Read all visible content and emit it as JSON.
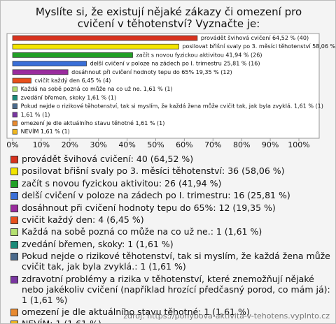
{
  "chart_data": {
    "type": "hbar",
    "title": "Myslíte si, že existují nějaké zákazy či omezení pro cvičení v těhotenství? Vyznačte je:",
    "categories": [
      "provádět švihová cvičení: 40 (64,52 %)",
      "posilovat břišní svaly po 3. měsíci těhotenství: 36 (58,06 %)",
      "začít s novou fyzickou aktivitou: 26 (41,94 %)",
      "delší cvičení v poloze na zádech po I. trimestru: 16 (25,81 %)",
      "dosáhnout při cvičení hodnoty tepu do 65%: 12 (19,35 %)",
      "cvičit každý den: 4 (6,45 %)",
      "Každá na sobě pozná co může na co už ne.: 1 (1,61 %)",
      "zvedání břemen, skoky: 1 (1,61 %)",
      "Pokud nejde o rizikové těhotenství, tak si myslím, že každá žena může cvičit tak, jak byla zvyklá.: 1 (1,61 %)",
      "zdravotní problémy a rizika v těhotenství, které znemožňují nějaké nebo jakékoliv cvičení (například hrozící předčasný porod, co mám já): 1 (1,61 %)",
      "omezení je dle aktuálního stavu  těhotné: 1 (1,61 %)",
      "NEVÍM: 1 (1,61 %)"
    ],
    "values": [
      64.52,
      58.06,
      41.94,
      25.81,
      19.35,
      6.45,
      1.61,
      1.61,
      1.61,
      1.61,
      1.61,
      1.61
    ],
    "value_labels": [
      "provádět švihová cvičení 64,52 % (40)",
      "posilovat břišní svaly po 3. měsíci těhotenství 58,06 % (36)",
      "začít s novou fyzickou aktivitou 41,94 % (26)",
      "delší cvičení v poloze na zádech po I. trimestru 25,81 % (16)",
      "dosáhnout při cvičení hodnoty tepu do 65% 19,35 % (12)",
      "cvičit každý den 6,45 % (4)",
      "Každá na sobě pozná co může na co už ne. 1,61 % (1)",
      "zvedání břemen, skoky 1,61 % (1)",
      "Pokud nejde o rizikové těhotenství, tak si myslím, že každá žena může cvičit tak, jak byla zvyklá. 1,61 % (1)",
      "1,61 % (1)",
      "omezení je dle aktuálního stavu  těhotné 1,61 % (1)",
      "NEVÍM 1,61 % (1)"
    ],
    "colors": [
      "#d8321e",
      "#f2e400",
      "#22a026",
      "#3a6fd8",
      "#9a2c9e",
      "#e8501c",
      "#b4e070",
      "#1a8a78",
      "#4a6a8c",
      "#7a36a2",
      "#e88a30",
      "#f0b820"
    ],
    "xlim": [
      0,
      100
    ],
    "xticks": [
      {
        "value": 0,
        "label": "0%"
      },
      {
        "value": 10,
        "label": "10%"
      },
      {
        "value": 20,
        "label": "20%"
      },
      {
        "value": 30,
        "label": "30%"
      },
      {
        "value": 40,
        "label": "40%"
      },
      {
        "value": 50,
        "label": "50%"
      },
      {
        "value": 60,
        "label": "60%"
      },
      {
        "value": 70,
        "label": "70%"
      },
      {
        "value": 80,
        "label": "80%"
      },
      {
        "value": 90,
        "label": "90%"
      },
      {
        "value": 100,
        "label": "100%"
      }
    ],
    "source": "zdroj: https://pohybova-aktivita-v-tehotens.vyplnto.cz"
  }
}
